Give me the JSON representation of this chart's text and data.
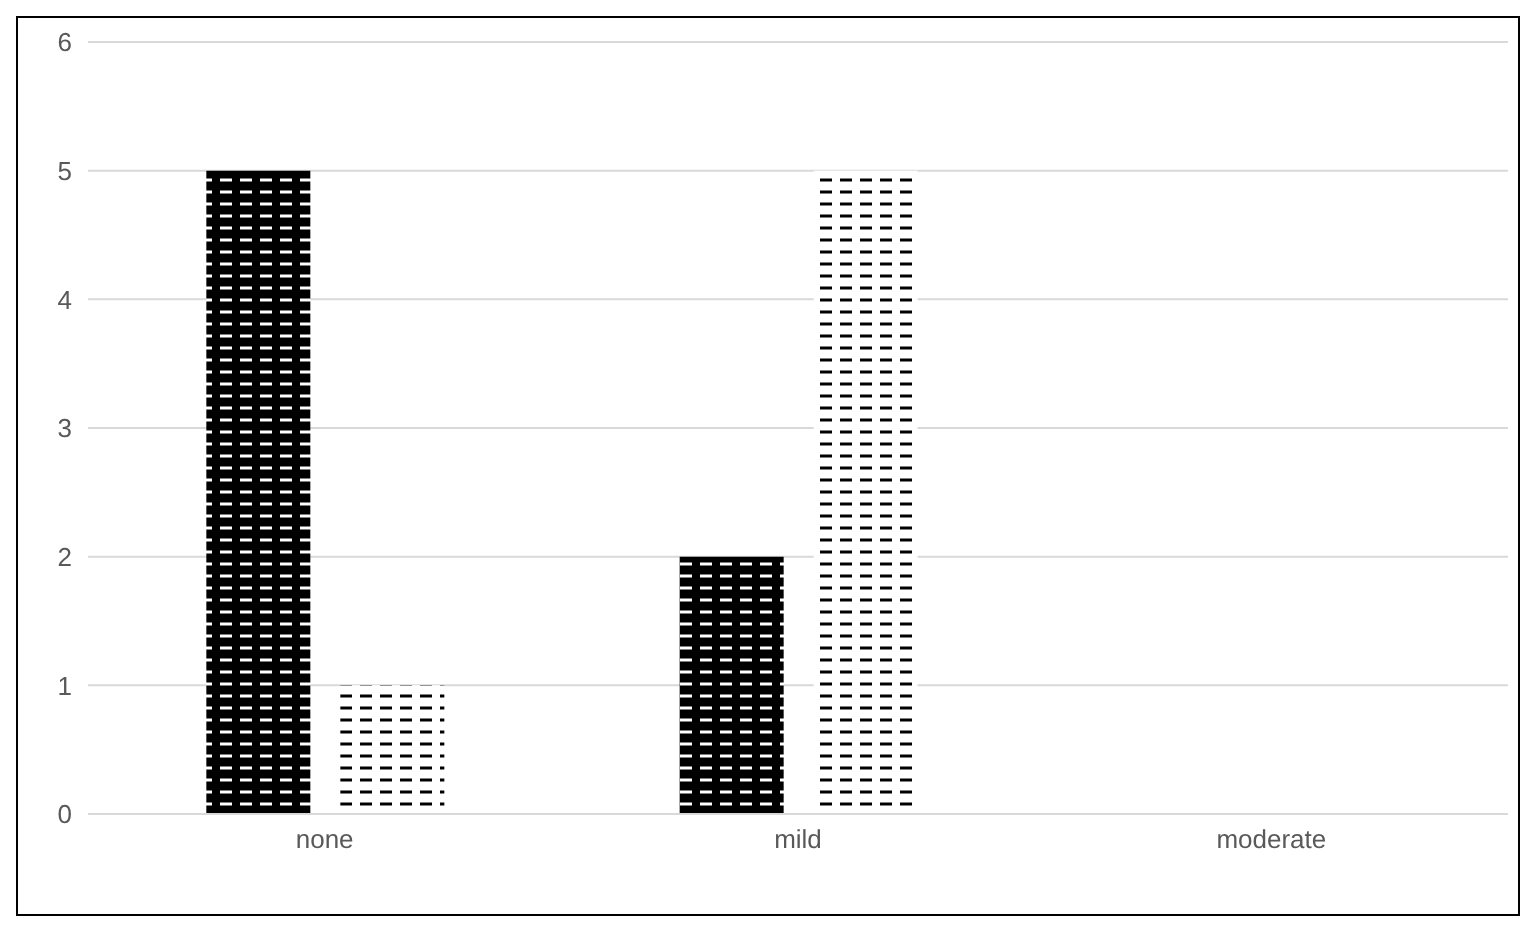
{
  "chart_data": {
    "type": "bar",
    "categories": [
      "none",
      "mild",
      "moderate"
    ],
    "series": [
      {
        "color": "#000000",
        "values": [
          5,
          2,
          0
        ]
      },
      {
        "color": "#ffffff",
        "values": [
          1,
          5,
          0
        ]
      }
    ],
    "ylim": [
      0,
      6
    ],
    "yticks": [
      0,
      1,
      2,
      3,
      4,
      5,
      6
    ],
    "grid": "y",
    "legend": false
  }
}
